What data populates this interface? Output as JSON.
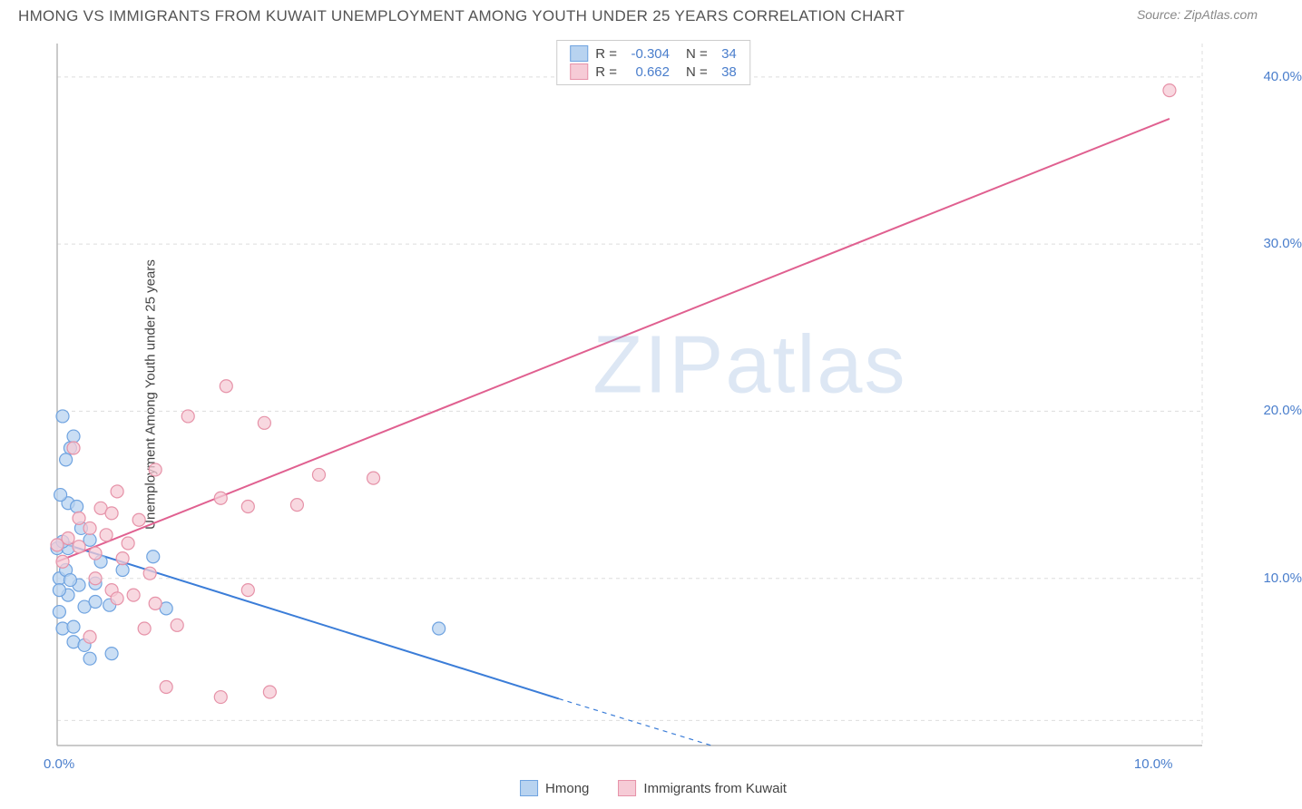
{
  "header": {
    "title": "HMONG VS IMMIGRANTS FROM KUWAIT UNEMPLOYMENT AMONG YOUTH UNDER 25 YEARS CORRELATION CHART",
    "source": "Source: ZipAtlas.com"
  },
  "chart": {
    "type": "scatter",
    "y_axis_label": "Unemployment Among Youth under 25 years",
    "xlim": [
      0,
      10.5
    ],
    "ylim": [
      0,
      42
    ],
    "x_ticks": [
      {
        "v": 0,
        "l": "0.0%"
      },
      {
        "v": 10,
        "l": "10.0%"
      }
    ],
    "y_ticks": [
      {
        "v": 10,
        "l": "10.0%"
      },
      {
        "v": 20,
        "l": "20.0%"
      },
      {
        "v": 30,
        "l": "30.0%"
      },
      {
        "v": 40,
        "l": "40.0%"
      }
    ],
    "y_gridlines": [
      1.5,
      10,
      20,
      30,
      40
    ],
    "background_color": "#ffffff",
    "grid_color": "#dddddd",
    "axis_color": "#b8b8b8",
    "tick_label_color": "#4a7ecc",
    "marker_radius": 7,
    "marker_stroke_width": 1.2,
    "line_width": 2,
    "watermark": {
      "text_bold": "ZIP",
      "text_light": "atlas"
    },
    "series": [
      {
        "name": "Hmong",
        "fill_color": "#b8d3f0",
        "stroke_color": "#6fa3e0",
        "line_color": "#3b7dd8",
        "R": "-0.304",
        "N": "34",
        "regression": {
          "x1": 0,
          "y1": 12.2,
          "x2_solid": 4.6,
          "y2_solid": 2.8,
          "x2_dash": 6.0,
          "y2_dash": 0
        },
        "points": [
          {
            "x": 0.05,
            "y": 19.7
          },
          {
            "x": 0.15,
            "y": 18.5
          },
          {
            "x": 0.12,
            "y": 17.8
          },
          {
            "x": 0.08,
            "y": 17.1
          },
          {
            "x": 0.02,
            "y": 10.0
          },
          {
            "x": 0.08,
            "y": 10.5
          },
          {
            "x": 0.1,
            "y": 14.5
          },
          {
            "x": 0.18,
            "y": 14.3
          },
          {
            "x": 0.0,
            "y": 11.8
          },
          {
            "x": 0.1,
            "y": 11.8
          },
          {
            "x": 0.05,
            "y": 12.2
          },
          {
            "x": 0.3,
            "y": 12.3
          },
          {
            "x": 0.88,
            "y": 11.3
          },
          {
            "x": 0.1,
            "y": 9.0
          },
          {
            "x": 0.02,
            "y": 9.3
          },
          {
            "x": 0.2,
            "y": 9.6
          },
          {
            "x": 0.12,
            "y": 9.9
          },
          {
            "x": 0.35,
            "y": 9.7
          },
          {
            "x": 0.02,
            "y": 8.0
          },
          {
            "x": 0.25,
            "y": 8.3
          },
          {
            "x": 0.35,
            "y": 8.6
          },
          {
            "x": 0.48,
            "y": 8.4
          },
          {
            "x": 0.05,
            "y": 7.0
          },
          {
            "x": 0.15,
            "y": 7.1
          },
          {
            "x": 0.5,
            "y": 5.5
          },
          {
            "x": 0.3,
            "y": 5.2
          },
          {
            "x": 1.0,
            "y": 8.2
          },
          {
            "x": 3.5,
            "y": 7.0
          },
          {
            "x": 0.6,
            "y": 10.5
          },
          {
            "x": 0.4,
            "y": 11.0
          },
          {
            "x": 0.03,
            "y": 15.0
          },
          {
            "x": 0.22,
            "y": 13.0
          },
          {
            "x": 0.15,
            "y": 6.2
          },
          {
            "x": 0.25,
            "y": 6.0
          }
        ]
      },
      {
        "name": "Immigrants from Kuwait",
        "fill_color": "#f6cbd6",
        "stroke_color": "#e692a8",
        "line_color": "#e06090",
        "R": "0.662",
        "N": "38",
        "regression": {
          "x1": 0,
          "y1": 11.0,
          "x2_solid": 10.2,
          "y2_solid": 37.5,
          "x2_dash": 10.2,
          "y2_dash": 37.5
        },
        "points": [
          {
            "x": 10.2,
            "y": 39.2
          },
          {
            "x": 1.55,
            "y": 21.5
          },
          {
            "x": 1.2,
            "y": 19.7
          },
          {
            "x": 1.9,
            "y": 19.3
          },
          {
            "x": 0.15,
            "y": 17.8
          },
          {
            "x": 0.9,
            "y": 16.5
          },
          {
            "x": 2.4,
            "y": 16.2
          },
          {
            "x": 2.9,
            "y": 16.0
          },
          {
            "x": 1.5,
            "y": 14.8
          },
          {
            "x": 1.75,
            "y": 14.3
          },
          {
            "x": 2.2,
            "y": 14.4
          },
          {
            "x": 0.4,
            "y": 14.2
          },
          {
            "x": 0.5,
            "y": 13.9
          },
          {
            "x": 0.75,
            "y": 13.5
          },
          {
            "x": 0.3,
            "y": 13.0
          },
          {
            "x": 0.1,
            "y": 12.4
          },
          {
            "x": 0.0,
            "y": 12.0
          },
          {
            "x": 0.2,
            "y": 11.9
          },
          {
            "x": 0.65,
            "y": 12.1
          },
          {
            "x": 0.35,
            "y": 11.5
          },
          {
            "x": 0.05,
            "y": 11.0
          },
          {
            "x": 0.85,
            "y": 10.3
          },
          {
            "x": 1.75,
            "y": 9.3
          },
          {
            "x": 0.5,
            "y": 9.3
          },
          {
            "x": 0.55,
            "y": 8.8
          },
          {
            "x": 0.9,
            "y": 8.5
          },
          {
            "x": 0.8,
            "y": 7.0
          },
          {
            "x": 1.1,
            "y": 7.2
          },
          {
            "x": 0.3,
            "y": 6.5
          },
          {
            "x": 1.0,
            "y": 3.5
          },
          {
            "x": 1.5,
            "y": 2.9
          },
          {
            "x": 1.95,
            "y": 3.2
          },
          {
            "x": 0.45,
            "y": 12.6
          },
          {
            "x": 0.55,
            "y": 15.2
          },
          {
            "x": 0.2,
            "y": 13.6
          },
          {
            "x": 0.6,
            "y": 11.2
          },
          {
            "x": 0.35,
            "y": 10.0
          },
          {
            "x": 0.7,
            "y": 9.0
          }
        ]
      }
    ]
  }
}
